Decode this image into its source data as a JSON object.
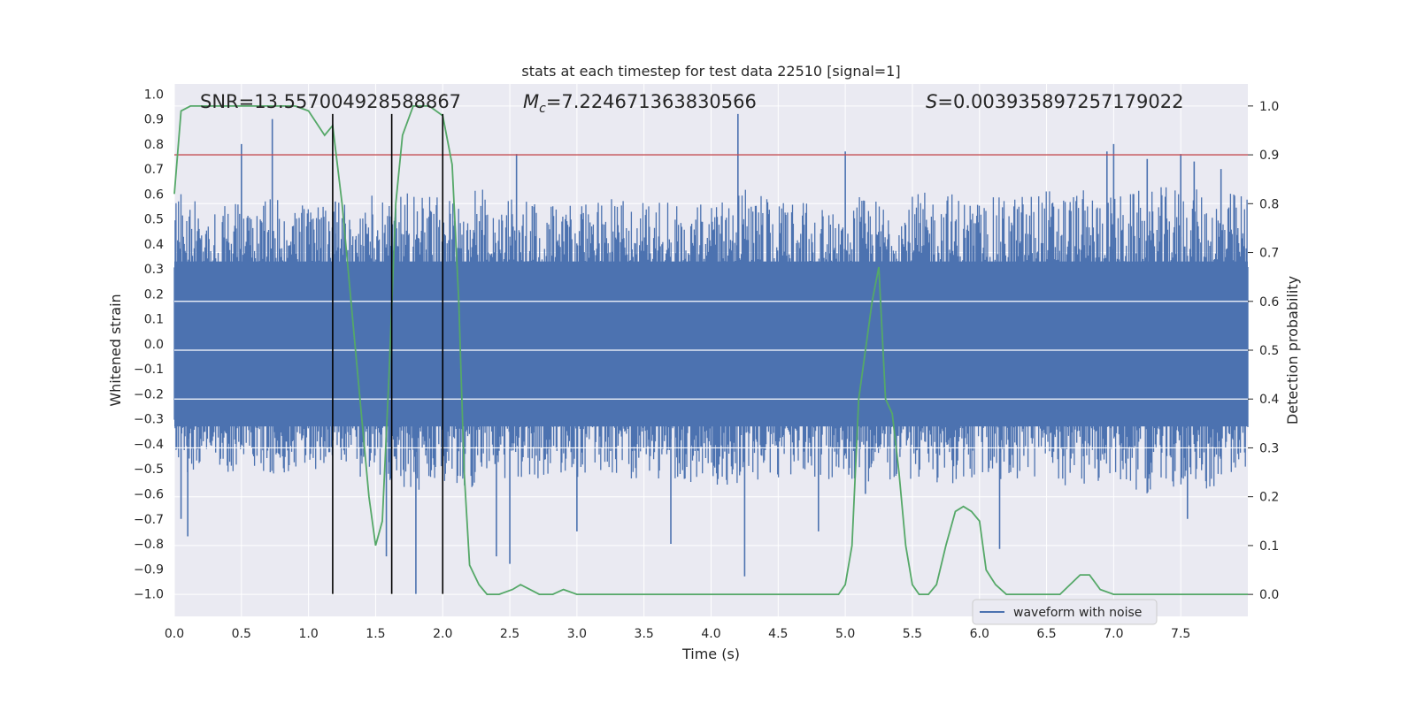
{
  "chart_data": {
    "type": "line",
    "title": "stats at each timestep for test data 22510 [signal=1]",
    "xlabel": "Time (s)",
    "ylabel": "Whitened strain",
    "y2label": "Detection probability",
    "xlim": [
      0.0,
      8.0
    ],
    "ylim": [
      -1.09,
      1.04
    ],
    "y2lim": [
      -0.045,
      1.045
    ],
    "xticks": [
      "0.0",
      "0.5",
      "1.0",
      "1.5",
      "2.0",
      "2.5",
      "3.0",
      "3.5",
      "4.0",
      "4.5",
      "5.0",
      "5.5",
      "6.0",
      "6.5",
      "7.0",
      "7.5"
    ],
    "yticks": [
      "1.0",
      "0.9",
      "0.8",
      "0.7",
      "0.6",
      "0.5",
      "0.4",
      "0.3",
      "0.2",
      "0.1",
      "0.0",
      "−0.1",
      "−0.2",
      "−0.3",
      "−0.4",
      "−0.5",
      "−0.6",
      "−0.7",
      "−0.8",
      "−0.9",
      "−1.0"
    ],
    "y2ticks": [
      "1.0",
      "0.9",
      "0.8",
      "0.7",
      "0.6",
      "0.5",
      "0.4",
      "0.3",
      "0.2",
      "0.1",
      "0.0"
    ],
    "grid": true,
    "legend": {
      "placement": "lower-right",
      "entries": [
        "waveform with noise"
      ]
    },
    "annotations": {
      "snr": "SNR=13.557004928588867",
      "mc_symbol": "M",
      "mc_sub": "c",
      "mc_value": "=7.224671363830566",
      "s_symbol": "S",
      "s_value": "=0.003935897257179022"
    },
    "threshold_line": {
      "axis": "y2",
      "value": 0.9,
      "color": "#c44e52"
    },
    "vertical_lines": {
      "x": [
        1.18,
        1.62,
        2.0
      ],
      "ymin": -1.0,
      "ymax": 0.92,
      "color": "#000000"
    },
    "series": [
      {
        "name": "waveform with noise",
        "axis": "y",
        "color": "#4c72b0",
        "envelope_x": [
          0.0,
          0.25,
          0.5,
          0.75,
          1.0,
          1.25,
          1.5,
          1.75,
          2.0,
          2.25,
          2.5,
          2.75,
          3.0,
          3.25,
          3.5,
          3.75,
          4.0,
          4.25,
          4.5,
          4.75,
          5.0,
          5.25,
          5.5,
          5.75,
          6.0,
          6.25,
          6.5,
          6.75,
          7.0,
          7.25,
          7.5,
          7.75,
          8.0
        ],
        "envelope_upper": [
          0.62,
          0.55,
          0.58,
          0.6,
          0.55,
          0.57,
          0.6,
          0.62,
          0.58,
          0.63,
          0.6,
          0.57,
          0.55,
          0.58,
          0.6,
          0.57,
          0.6,
          0.62,
          0.58,
          0.56,
          0.6,
          0.58,
          0.6,
          0.62,
          0.58,
          0.6,
          0.63,
          0.62,
          0.6,
          0.62,
          0.64,
          0.6,
          0.62
        ],
        "envelope_lower": [
          -0.5,
          -0.55,
          -0.5,
          -0.52,
          -0.5,
          -0.52,
          -0.55,
          -0.6,
          -0.55,
          -0.58,
          -0.55,
          -0.55,
          -0.55,
          -0.52,
          -0.55,
          -0.55,
          -0.6,
          -0.55,
          -0.55,
          -0.55,
          -0.55,
          -0.55,
          -0.55,
          -0.57,
          -0.55,
          -0.55,
          -0.55,
          -0.58,
          -0.55,
          -0.6,
          -0.58,
          -0.58,
          -0.5
        ],
        "spikes": [
          [
            0.05,
            -0.7
          ],
          [
            0.1,
            -0.77
          ],
          [
            0.5,
            0.8
          ],
          [
            0.73,
            0.9
          ],
          [
            1.2,
            0.57
          ],
          [
            1.58,
            -0.85
          ],
          [
            1.8,
            -1.0
          ],
          [
            2.55,
            0.76
          ],
          [
            2.5,
            -0.88
          ],
          [
            2.4,
            -0.85
          ],
          [
            3.0,
            -0.75
          ],
          [
            3.7,
            -0.8
          ],
          [
            4.2,
            0.92
          ],
          [
            4.25,
            -0.93
          ],
          [
            4.8,
            -0.75
          ],
          [
            5.0,
            0.77
          ],
          [
            5.15,
            -0.6
          ],
          [
            6.15,
            -0.82
          ],
          [
            6.95,
            0.77
          ],
          [
            7.0,
            0.8
          ],
          [
            7.25,
            0.74
          ],
          [
            7.5,
            0.76
          ],
          [
            7.6,
            0.73
          ],
          [
            7.55,
            -0.7
          ],
          [
            7.8,
            0.7
          ]
        ]
      },
      {
        "name": "",
        "axis": "y2",
        "color": "#55a868",
        "x": [
          0.0,
          0.05,
          0.12,
          0.3,
          0.5,
          0.7,
          0.9,
          1.0,
          1.12,
          1.18,
          1.25,
          1.35,
          1.45,
          1.5,
          1.55,
          1.6,
          1.65,
          1.7,
          1.78,
          1.9,
          2.0,
          2.07,
          2.12,
          2.16,
          2.2,
          2.27,
          2.33,
          2.42,
          2.52,
          2.58,
          2.65,
          2.72,
          2.82,
          2.9,
          3.0,
          3.1,
          3.5,
          3.9,
          4.1,
          4.2,
          4.5,
          4.9,
          4.95,
          5.0,
          5.05,
          5.1,
          5.2,
          5.25,
          5.3,
          5.35,
          5.4,
          5.45,
          5.5,
          5.55,
          5.62,
          5.68,
          5.75,
          5.82,
          5.88,
          5.94,
          6.0,
          6.05,
          6.12,
          6.2,
          6.3,
          6.4,
          6.5,
          6.6,
          6.75,
          6.82,
          6.9,
          7.0,
          7.2,
          7.5,
          7.7,
          7.9,
          8.0
        ],
        "y": [
          0.82,
          0.99,
          1.0,
          1.0,
          1.0,
          1.0,
          1.0,
          0.99,
          0.94,
          0.96,
          0.8,
          0.5,
          0.2,
          0.1,
          0.15,
          0.45,
          0.8,
          0.94,
          1.0,
          1.0,
          0.98,
          0.88,
          0.6,
          0.25,
          0.06,
          0.02,
          0.0,
          0.0,
          0.01,
          0.02,
          0.01,
          0.0,
          0.0,
          0.01,
          0.0,
          0.0,
          0.0,
          0.0,
          0.0,
          0.0,
          0.0,
          0.0,
          0.0,
          0.02,
          0.1,
          0.4,
          0.6,
          0.67,
          0.4,
          0.37,
          0.25,
          0.1,
          0.02,
          0.0,
          0.0,
          0.02,
          0.1,
          0.17,
          0.18,
          0.17,
          0.15,
          0.05,
          0.02,
          0.0,
          0.0,
          0.0,
          0.0,
          0.0,
          0.04,
          0.04,
          0.01,
          0.0,
          0.0,
          0.0,
          0.0,
          0.0,
          0.0
        ]
      }
    ]
  }
}
